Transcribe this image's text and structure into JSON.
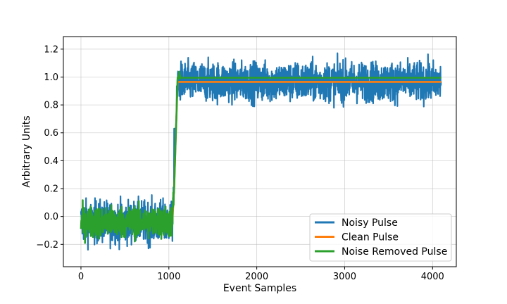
{
  "chart_data": {
    "type": "line",
    "title": "",
    "xlabel": "Event Samples",
    "ylabel": "Arbitrary Units",
    "xlim": [
      -200,
      4270
    ],
    "ylim": [
      -0.36,
      1.29
    ],
    "x_ticks": [
      0,
      1000,
      2000,
      3000,
      4000
    ],
    "y_ticks": [
      -0.2,
      0.0,
      0.2,
      0.4,
      0.6,
      0.8,
      1.0,
      1.2
    ],
    "x_tick_labels": [
      "0",
      "1000",
      "2000",
      "3000",
      "4000"
    ],
    "y_tick_labels": [
      "−0.2",
      "0.0",
      "0.2",
      "0.4",
      "0.6",
      "0.8",
      "1.0",
      "1.2"
    ],
    "grid": true,
    "legend_position": "lower-right",
    "series": [
      {
        "name": "Noisy Pulse",
        "color": "#1f77b4",
        "x": [
          0,
          1040,
          1060,
          1080,
          1100,
          4096
        ],
        "y": [
          -0.04,
          -0.04,
          0.2,
          0.6,
          0.965,
          0.965
        ],
        "noise_range_low": [
          -0.29,
          0.63
        ],
        "noise_range_high": [
          0.21,
          1.22
        ]
      },
      {
        "name": "Clean Pulse",
        "color": "#ff7f0e",
        "x": [
          0,
          1040,
          1060,
          1080,
          1100,
          4096
        ],
        "y": [
          -0.04,
          -0.04,
          0.2,
          0.6,
          0.965,
          0.965
        ]
      },
      {
        "name": "Noise Removed Pulse",
        "color": "#2ca02c",
        "x": [
          0,
          1040,
          1060,
          1080,
          1100,
          4096
        ],
        "y": [
          -0.04,
          -0.04,
          0.2,
          0.6,
          0.995,
          0.995
        ]
      }
    ]
  }
}
